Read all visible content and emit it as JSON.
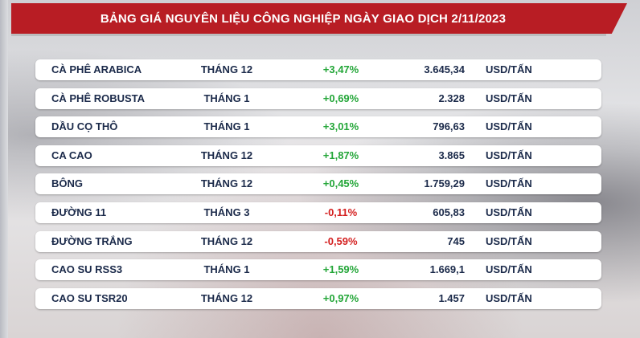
{
  "header": {
    "title": "BẢNG GIÁ NGUYÊN LIỆU CÔNG NGHIỆP NGÀY GIAO DỊCH 2/11/2023"
  },
  "colors": {
    "header_bg": "#b81d24",
    "positive": "#23a638",
    "negative": "#d42020",
    "text": "#1b2a4a"
  },
  "rows": [
    {
      "name": "CÀ PHÊ ARABICA",
      "month": "THÁNG 12",
      "change": "+3,47%",
      "direction": "up",
      "price": "3.645,34",
      "unit": "USD/TẤN"
    },
    {
      "name": "CÀ PHÊ ROBUSTA",
      "month": "THÁNG 1",
      "change": "+0,69%",
      "direction": "up",
      "price": "2.328",
      "unit": "USD/TẤN"
    },
    {
      "name": "DẦU CỌ THÔ",
      "month": "THÁNG 1",
      "change": "+3,01%",
      "direction": "up",
      "price": "796,63",
      "unit": "USD/TẤN"
    },
    {
      "name": "CA CAO",
      "month": "THÁNG 12",
      "change": "+1,87%",
      "direction": "up",
      "price": "3.865",
      "unit": "USD/TẤN"
    },
    {
      "name": "BÔNG",
      "month": "THÁNG 12",
      "change": "+0,45%",
      "direction": "up",
      "price": "1.759,29",
      "unit": "USD/TẤN"
    },
    {
      "name": "ĐƯỜNG 11",
      "month": "THÁNG 3",
      "change": "-0,11%",
      "direction": "down",
      "price": "605,83",
      "unit": "USD/TẤN"
    },
    {
      "name": "ĐƯỜNG TRẮNG",
      "month": "THÁNG 12",
      "change": "-0,59%",
      "direction": "down",
      "price": "745",
      "unit": "USD/TẤN"
    },
    {
      "name": "CAO SU RSS3",
      "month": "THÁNG 1",
      "change": "+1,59%",
      "direction": "up",
      "price": "1.669,1",
      "unit": "USD/TẤN"
    },
    {
      "name": "CAO SU TSR20",
      "month": "THÁNG 12",
      "change": "+0,97%",
      "direction": "up",
      "price": "1.457",
      "unit": "USD/TẤN"
    }
  ]
}
